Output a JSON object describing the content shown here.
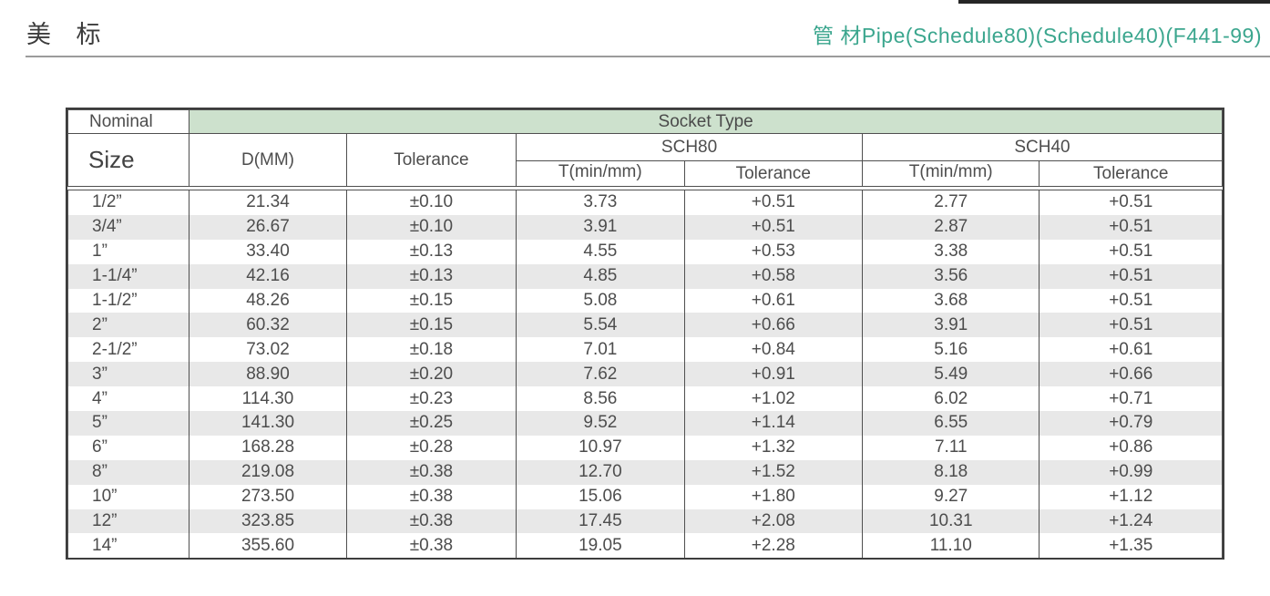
{
  "page": {
    "title_left": "美 标",
    "title_right": "管 材Pipe(Schedule80)(Schedule40)(F441-99)",
    "accent_color": "#3ba68e",
    "header_band_color": "#cde1cd"
  },
  "table": {
    "header": {
      "nominal": "Nominal",
      "size": "Size",
      "socket_type": "Socket Type",
      "d_mm": "D(MM)",
      "tolerance": "Tolerance",
      "sch80": "SCH80",
      "sch40": "SCH40",
      "sch80_t_min": "T(min/mm)",
      "sch80_tolerance": "Tolerance",
      "sch40_t_min": "T(min/mm)",
      "sch40_tolerance": "Tolerance"
    },
    "rows": [
      {
        "size": "1/2”",
        "d": "21.34",
        "tol": "±0.10",
        "s80_t": "3.73",
        "s80_tol": "+0.51",
        "s40_t": "2.77",
        "s40_tol": "+0.51"
      },
      {
        "size": "3/4”",
        "d": "26.67",
        "tol": "±0.10",
        "s80_t": "3.91",
        "s80_tol": "+0.51",
        "s40_t": "2.87",
        "s40_tol": "+0.51"
      },
      {
        "size": "1”",
        "d": "33.40",
        "tol": "±0.13",
        "s80_t": "4.55",
        "s80_tol": "+0.53",
        "s40_t": "3.38",
        "s40_tol": "+0.51"
      },
      {
        "size": "1-1/4”",
        "d": "42.16",
        "tol": "±0.13",
        "s80_t": "4.85",
        "s80_tol": "+0.58",
        "s40_t": "3.56",
        "s40_tol": "+0.51"
      },
      {
        "size": "1-1/2”",
        "d": "48.26",
        "tol": "±0.15",
        "s80_t": "5.08",
        "s80_tol": "+0.61",
        "s40_t": "3.68",
        "s40_tol": "+0.51"
      },
      {
        "size": "2”",
        "d": "60.32",
        "tol": "±0.15",
        "s80_t": "5.54",
        "s80_tol": "+0.66",
        "s40_t": "3.91",
        "s40_tol": "+0.51"
      },
      {
        "size": "2-1/2”",
        "d": "73.02",
        "tol": "±0.18",
        "s80_t": "7.01",
        "s80_tol": "+0.84",
        "s40_t": "5.16",
        "s40_tol": "+0.61"
      },
      {
        "size": "3”",
        "d": "88.90",
        "tol": "±0.20",
        "s80_t": "7.62",
        "s80_tol": "+0.91",
        "s40_t": "5.49",
        "s40_tol": "+0.66"
      },
      {
        "size": "4”",
        "d": "114.30",
        "tol": "±0.23",
        "s80_t": "8.56",
        "s80_tol": "+1.02",
        "s40_t": "6.02",
        "s40_tol": "+0.71"
      },
      {
        "size": "5”",
        "d": "141.30",
        "tol": "±0.25",
        "s80_t": "9.52",
        "s80_tol": "+1.14",
        "s40_t": "6.55",
        "s40_tol": "+0.79"
      },
      {
        "size": "6”",
        "d": "168.28",
        "tol": "±0.28",
        "s80_t": "10.97",
        "s80_tol": "+1.32",
        "s40_t": "7.11",
        "s40_tol": "+0.86"
      },
      {
        "size": "8”",
        "d": "219.08",
        "tol": "±0.38",
        "s80_t": "12.70",
        "s80_tol": "+1.52",
        "s40_t": "8.18",
        "s40_tol": "+0.99"
      },
      {
        "size": "10”",
        "d": "273.50",
        "tol": "±0.38",
        "s80_t": "15.06",
        "s80_tol": "+1.80",
        "s40_t": "9.27",
        "s40_tol": "+1.12"
      },
      {
        "size": "12”",
        "d": "323.85",
        "tol": "±0.38",
        "s80_t": "17.45",
        "s80_tol": "+2.08",
        "s40_t": "10.31",
        "s40_tol": "+1.24"
      },
      {
        "size": "14”",
        "d": "355.60",
        "tol": "±0.38",
        "s80_t": "19.05",
        "s80_tol": "+2.28",
        "s40_t": "11.10",
        "s40_tol": "+1.35"
      }
    ]
  }
}
